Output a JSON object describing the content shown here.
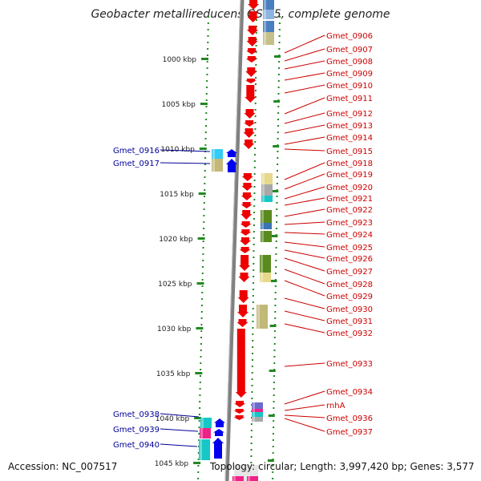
{
  "title": "Geobacter metallireducens GS-15, complete genome",
  "footer": {
    "accession": "Accession: NC_007517",
    "topology": "Topology: circular; Length: 3,997,420 bp; Genes: 3,577"
  },
  "colors": {
    "forward_gene": "#ee0000",
    "reverse_gene": "#0000ee",
    "forward_label": "#cc0000",
    "reverse_label": "#000099",
    "tick": "#228822",
    "backbone": "#808080"
  },
  "scale_labels": [
    "1000 kbp",
    "1005 kbp",
    "1010 kbp",
    "1015 kbp",
    "1020 kbp",
    "1025 kbp",
    "1030 kbp",
    "1035 kbp",
    "1040 kbp",
    "1045 kbp"
  ],
  "forward_genes": [
    "Gmet_0906",
    "Gmet_0907",
    "Gmet_0908",
    "Gmet_0909",
    "Gmet_0910",
    "Gmet_0911",
    "Gmet_0912",
    "Gmet_0913",
    "Gmet_0914",
    "Gmet_0915",
    "Gmet_0918",
    "Gmet_0919",
    "Gmet_0920",
    "Gmet_0921",
    "Gmet_0922",
    "Gmet_0923",
    "Gmet_0924",
    "Gmet_0925",
    "Gmet_0926",
    "Gmet_0927",
    "Gmet_0928",
    "Gmet_0929",
    "Gmet_0930",
    "Gmet_0931",
    "Gmet_0932",
    "Gmet_0933",
    "Gmet_0934",
    "rnhA",
    "Gmet_0936",
    "Gmet_0937"
  ],
  "reverse_genes": [
    "Gmet_0916",
    "Gmet_0917",
    "Gmet_0938",
    "Gmet_0939",
    "Gmet_0940"
  ]
}
